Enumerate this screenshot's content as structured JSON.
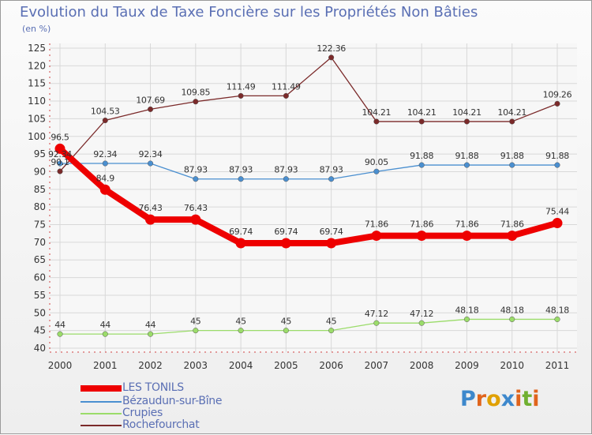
{
  "header": {
    "title": "Evolution du Taux de Taxe Foncière sur les Propriétés Non Bâties",
    "unit": "(en %)"
  },
  "legend": {
    "items": [
      {
        "label": "LES TONILS",
        "color": "#ee0000"
      },
      {
        "label": "Bézaudun-sur-Bîne",
        "color": "#4a8fd0"
      },
      {
        "label": "Crupies",
        "color": "#9bdc6a"
      },
      {
        "label": "Rochefourchat",
        "color": "#7b2a2a"
      }
    ]
  },
  "logo": {
    "letters": [
      "P",
      "r",
      "o",
      "x",
      "i",
      "t",
      "i"
    ],
    "colors": [
      "#3d88cc",
      "#e0641c",
      "#e0a000",
      "#3d88cc",
      "#e0641c",
      "#70b030",
      "#e0641c"
    ]
  },
  "chart_data": {
    "type": "line",
    "title": "Evolution du Taux de Taxe Foncière sur les Propriétés Non Bâties",
    "ylabel": "(en %)",
    "x": [
      "2000",
      "2001",
      "2002",
      "2003",
      "2004",
      "2005",
      "2006",
      "2007",
      "2008",
      "2009",
      "2010",
      "2011"
    ],
    "yticks": [
      40,
      45,
      50,
      55,
      60,
      65,
      70,
      75,
      80,
      85,
      90,
      95,
      100,
      105,
      110,
      115,
      120,
      125
    ],
    "ylim": [
      40,
      125
    ],
    "grid": true,
    "legend_position": "bottom-left",
    "series": [
      {
        "name": "LES TONILS",
        "color": "#ee0000",
        "values": [
          96.5,
          84.9,
          76.43,
          76.43,
          69.74,
          69.74,
          69.74,
          71.86,
          71.86,
          71.86,
          71.86,
          75.44
        ],
        "labels": [
          "96.5",
          "84.9",
          "76.43",
          "76.43",
          "69.74",
          "69.74",
          "69.74",
          "71.86",
          "71.86",
          "71.86",
          "71.86",
          "75.44"
        ]
      },
      {
        "name": "Bézaudun-sur-Bîne",
        "color": "#4a8fd0",
        "values": [
          92.34,
          92.34,
          92.34,
          87.93,
          87.93,
          87.93,
          87.93,
          90.05,
          91.88,
          91.88,
          91.88,
          91.88
        ],
        "labels": [
          "92.34",
          "92.34",
          "92.34",
          "87.93",
          "87.93",
          "87.93",
          "87.93",
          "90.05",
          "91.88",
          "91.88",
          "91.88",
          "91.88"
        ]
      },
      {
        "name": "Crupies",
        "color": "#9bdc6a",
        "values": [
          44,
          44,
          44,
          45,
          45,
          45,
          45,
          47.12,
          47.12,
          48.18,
          48.18,
          48.18
        ],
        "labels": [
          "44",
          "44",
          "44",
          "45",
          "45",
          "45",
          "45",
          "47.12",
          "47.12",
          "48.18",
          "48.18",
          "48.18"
        ]
      },
      {
        "name": "Rochefourchat",
        "color": "#7b2a2a",
        "values": [
          90.1,
          104.53,
          107.69,
          109.85,
          111.49,
          111.49,
          122.36,
          104.21,
          104.21,
          104.21,
          104.21,
          109.26
        ],
        "labels": [
          "90.1",
          "104.53",
          "107.69",
          "109.85",
          "111.49",
          "111.49",
          "122.36",
          "104.21",
          "104.21",
          "104.21",
          "104.21",
          "109.26"
        ]
      }
    ]
  }
}
